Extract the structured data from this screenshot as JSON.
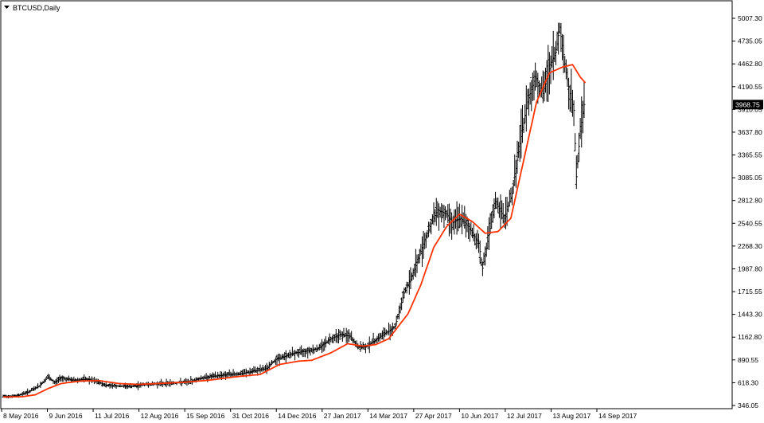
{
  "symbol_title": "BTCUSD,Daily",
  "colors": {
    "background": "#ffffff",
    "frame": "#000000",
    "bars": "#000000",
    "moving_average": "#ff3300",
    "price_label_bg": "#000000",
    "price_label_text": "#ffffff"
  },
  "chart_data": {
    "type": "ohlc-bar",
    "title": "BTCUSD,Daily",
    "ylim": [
      346.05,
      5007.3
    ],
    "y_ticks": [
      "5007.30",
      "4735.05",
      "4462.80",
      "4190.55",
      "3910.05",
      "3637.80",
      "3365.55",
      "3085.05",
      "2812.80",
      "2540.55",
      "2268.30",
      "1987.80",
      "1715.55",
      "1443.30",
      "1162.80",
      "890.55",
      "618.30",
      "346.05"
    ],
    "x_ticks": [
      "8 May 2016",
      "9 Jun 2016",
      "11 Jul 2016",
      "12 Aug 2016",
      "15 Sep 2016",
      "31 Oct 2016",
      "14 Dec 2016",
      "27 Jan 2017",
      "14 Mar 2017",
      "27 Apr 2017",
      "10 Jun 2017",
      "12 Jul 2017",
      "13 Aug 2017",
      "14 Sep 2017"
    ],
    "current_price": "3968.75",
    "price_anchors": [
      [
        0,
        455
      ],
      [
        10,
        460
      ],
      [
        20,
        510
      ],
      [
        28,
        580
      ],
      [
        35,
        690
      ],
      [
        40,
        620
      ],
      [
        45,
        680
      ],
      [
        55,
        650
      ],
      [
        65,
        660
      ],
      [
        72,
        640
      ],
      [
        80,
        590
      ],
      [
        90,
        580
      ],
      [
        100,
        575
      ],
      [
        110,
        600
      ],
      [
        125,
        610
      ],
      [
        135,
        620
      ],
      [
        145,
        630
      ],
      [
        155,
        680
      ],
      [
        165,
        700
      ],
      [
        175,
        720
      ],
      [
        185,
        730
      ],
      [
        195,
        760
      ],
      [
        205,
        790
      ],
      [
        212,
        900
      ],
      [
        218,
        930
      ],
      [
        225,
        970
      ],
      [
        235,
        1000
      ],
      [
        245,
        1030
      ],
      [
        255,
        1150
      ],
      [
        262,
        1200
      ],
      [
        270,
        1180
      ],
      [
        276,
        1050
      ],
      [
        282,
        1050
      ],
      [
        290,
        1140
      ],
      [
        298,
        1220
      ],
      [
        305,
        1300
      ],
      [
        312,
        1700
      ],
      [
        318,
        1900
      ],
      [
        325,
        2200
      ],
      [
        332,
        2500
      ],
      [
        338,
        2700
      ],
      [
        345,
        2650
      ],
      [
        350,
        2550
      ],
      [
        356,
        2600
      ],
      [
        362,
        2500
      ],
      [
        370,
        2300
      ],
      [
        373,
        2000
      ],
      [
        378,
        2400
      ],
      [
        383,
        2800
      ],
      [
        390,
        2600
      ],
      [
        396,
        2900
      ],
      [
        402,
        3500
      ],
      [
        408,
        4000
      ],
      [
        414,
        4300
      ],
      [
        420,
        4100
      ],
      [
        425,
        4400
      ],
      [
        430,
        4600
      ],
      [
        433,
        4900
      ],
      [
        438,
        4350
      ],
      [
        441,
        4100
      ],
      [
        444,
        3900
      ],
      [
        446,
        3100
      ],
      [
        449,
        3650
      ],
      [
        452,
        3968.75
      ]
    ],
    "ma_anchors": [
      [
        0,
        448
      ],
      [
        15,
        452
      ],
      [
        25,
        475
      ],
      [
        35,
        550
      ],
      [
        45,
        610
      ],
      [
        60,
        640
      ],
      [
        75,
        645
      ],
      [
        90,
        610
      ],
      [
        105,
        600
      ],
      [
        120,
        610
      ],
      [
        140,
        625
      ],
      [
        160,
        650
      ],
      [
        180,
        690
      ],
      [
        200,
        720
      ],
      [
        215,
        840
      ],
      [
        230,
        880
      ],
      [
        240,
        890
      ],
      [
        255,
        980
      ],
      [
        268,
        1090
      ],
      [
        280,
        1060
      ],
      [
        290,
        1080
      ],
      [
        300,
        1150
      ],
      [
        315,
        1450
      ],
      [
        325,
        1800
      ],
      [
        335,
        2250
      ],
      [
        345,
        2500
      ],
      [
        355,
        2650
      ],
      [
        365,
        2560
      ],
      [
        375,
        2420
      ],
      [
        385,
        2440
      ],
      [
        395,
        2600
      ],
      [
        405,
        3300
      ],
      [
        415,
        4000
      ],
      [
        425,
        4350
      ],
      [
        435,
        4420
      ],
      [
        443,
        4450
      ],
      [
        449,
        4300
      ],
      [
        453,
        4230
      ]
    ]
  }
}
